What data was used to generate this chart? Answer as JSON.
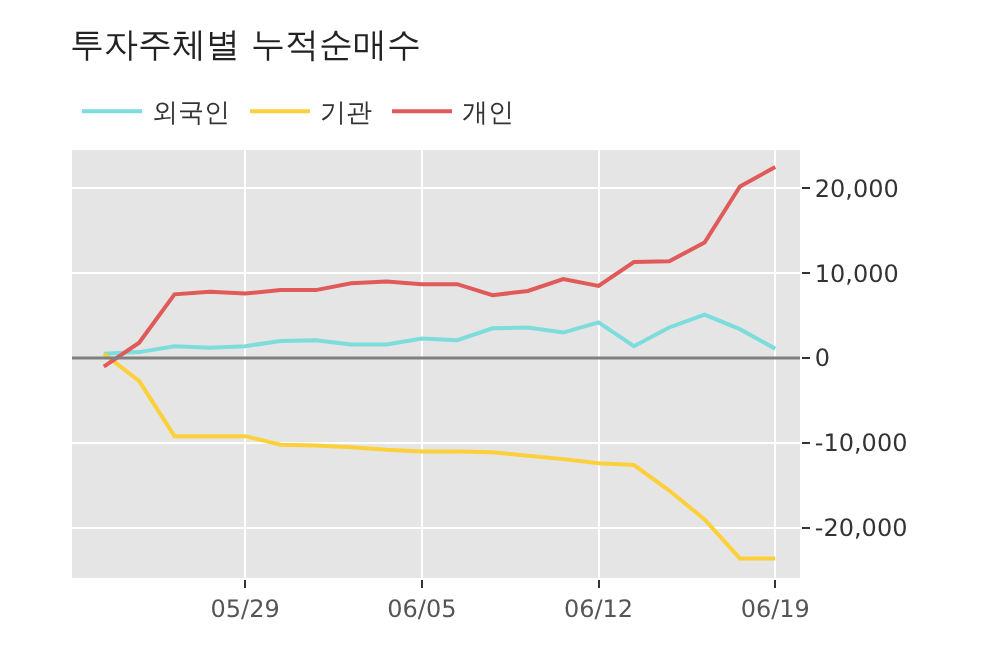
{
  "chart_data": {
    "type": "line",
    "title": "투자주체별 누적순매수",
    "categories": [
      null,
      null,
      null,
      null,
      "05/29",
      null,
      null,
      null,
      null,
      "06/05",
      null,
      null,
      null,
      null,
      "06/12",
      null,
      null,
      null,
      null,
      "06/19"
    ],
    "series": [
      {
        "name": "외국인",
        "color": "#7ddcdc",
        "values": [
          500,
          700,
          1400,
          1200,
          1400,
          2000,
          2100,
          1600,
          1600,
          2300,
          2100,
          3500,
          3600,
          3000,
          4200,
          1400,
          3600,
          5100,
          3400,
          1100
        ]
      },
      {
        "name": "기관",
        "color": "#fcd03a",
        "values": [
          500,
          -2700,
          -9200,
          -9200,
          -9200,
          -10200,
          -10300,
          -10500,
          -10800,
          -11000,
          -11000,
          -11100,
          -11500,
          -11900,
          -12400,
          -12600,
          -15600,
          -19000,
          -23600,
          -23600
        ]
      },
      {
        "name": "개인",
        "color": "#e05a5a",
        "values": [
          -1000,
          1800,
          7500,
          7800,
          7600,
          8000,
          8000,
          8800,
          9000,
          8700,
          8700,
          7400,
          7900,
          9300,
          8500,
          11300,
          11400,
          13600,
          20200,
          22500
        ]
      }
    ],
    "ylim": [
      -25900,
      24500
    ],
    "yticks": [
      {
        "value": 20000,
        "label": "20,000"
      },
      {
        "value": 10000,
        "label": "10,000"
      },
      0,
      {
        "value": -10000,
        "label": "-10,000"
      },
      {
        "value": -20000,
        "label": "-20,000"
      }
    ],
    "ref_lines": [
      {
        "axis": "y",
        "value": 0,
        "color": "#808080"
      }
    ],
    "grid": true,
    "legend": "top left",
    "marker": "none",
    "line_style": "solid"
  }
}
